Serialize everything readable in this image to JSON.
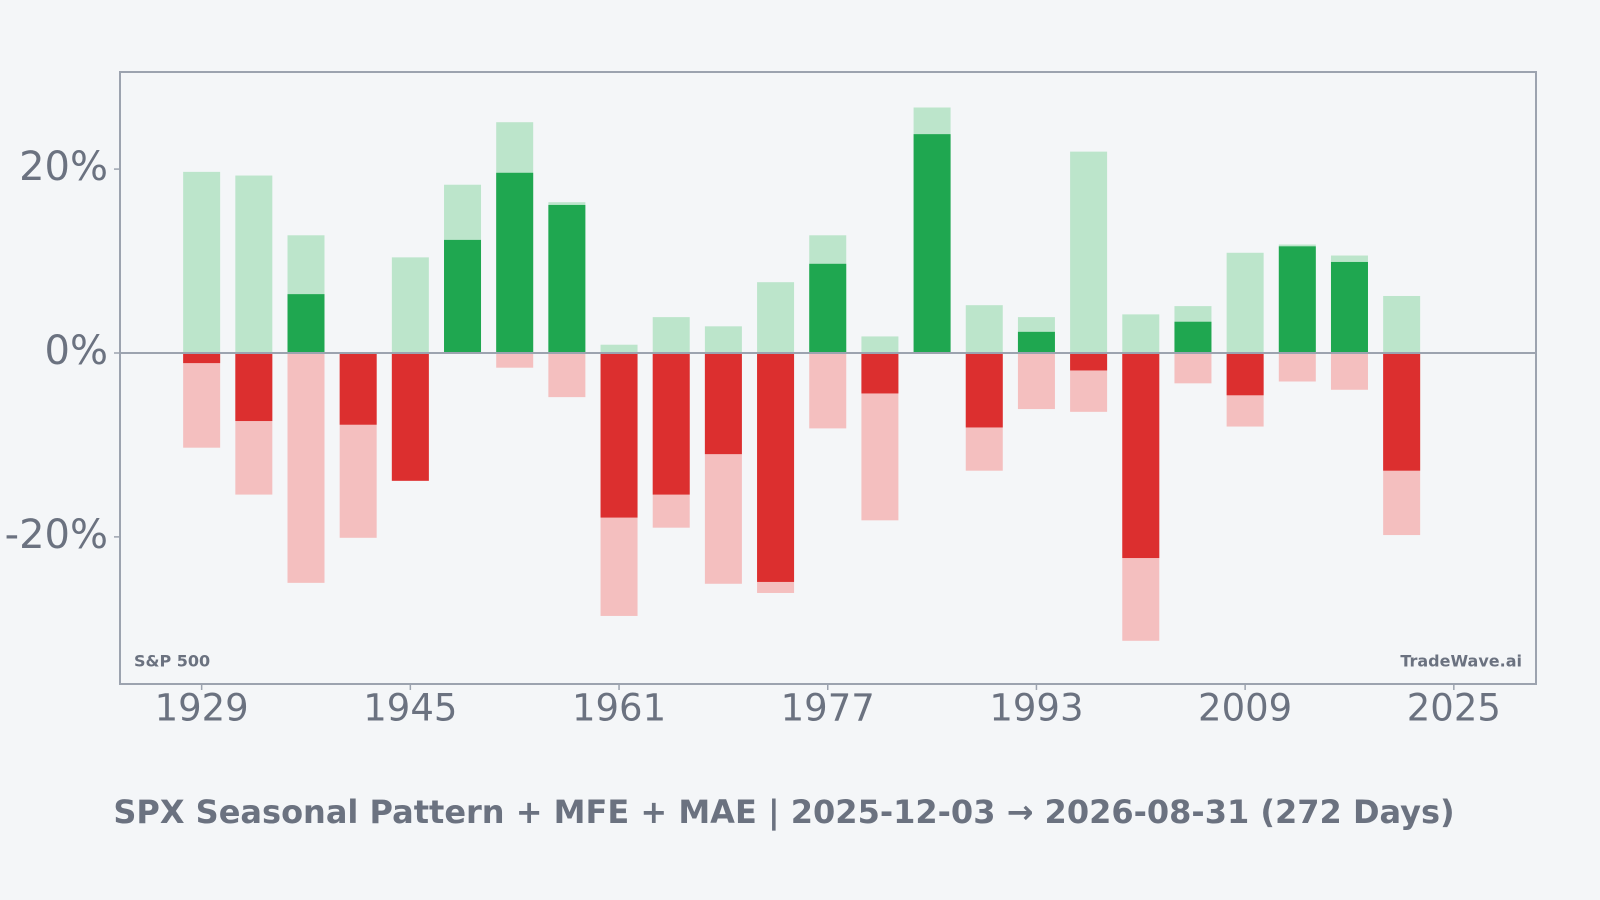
{
  "chart_data": {
    "type": "bar",
    "title": "SPX Seasonal Pattern + MFE + MAE | 2025-12-03 → 2026-08-31 (272 Days)",
    "annotations": [
      "S&P 500",
      "TradeWave.ai"
    ],
    "x": [
      1929,
      1933,
      1937,
      1941,
      1945,
      1949,
      1953,
      1957,
      1961,
      1965,
      1969,
      1973,
      1977,
      1981,
      1985,
      1989,
      1993,
      1997,
      2001,
      2005,
      2009,
      2013,
      2017,
      2021
    ],
    "values": [
      -1.1,
      -7.4,
      6.4,
      -7.8,
      -13.9,
      12.3,
      19.6,
      16.1,
      -17.9,
      -15.4,
      -11.0,
      -24.9,
      9.7,
      -4.4,
      23.8,
      -8.1,
      2.3,
      -1.9,
      -22.3,
      3.4,
      -4.6,
      11.6,
      9.9,
      -12.8
    ],
    "mfe_values": [
      19.7,
      19.3,
      12.8,
      0.1,
      10.4,
      18.3,
      25.1,
      16.4,
      0.9,
      3.9,
      2.9,
      7.7,
      12.8,
      1.8,
      26.7,
      5.2,
      3.9,
      21.9,
      4.2,
      5.1,
      10.9,
      11.8,
      10.6,
      6.2
    ],
    "mae_values": [
      -10.3,
      -15.4,
      -25.0,
      -20.1,
      -13.9,
      0,
      -1.6,
      -4.8,
      -28.6,
      -19.0,
      -25.1,
      -26.1,
      -8.2,
      -18.2,
      0,
      -12.8,
      -6.1,
      -6.4,
      -31.3,
      -3.3,
      -8.0,
      -3.1,
      -4.0,
      -19.8
    ],
    "positive_color": "#1fa750",
    "negative_color": "#dc2f2f",
    "mfe_color": "#bce5cb",
    "mae_color": "#f4bfbf",
    "xlim": [
      1922.74,
      2031.3
    ],
    "xticks": [
      1929,
      1945,
      1961,
      1977,
      1993,
      2009,
      2025
    ],
    "ylim": [
      -36,
      30.56
    ],
    "yticks": [
      {
        "value": -20,
        "label": "-20%"
      },
      {
        "value": 0,
        "label": "0%"
      },
      {
        "value": 20,
        "label": "20%"
      }
    ],
    "grid": false
  }
}
